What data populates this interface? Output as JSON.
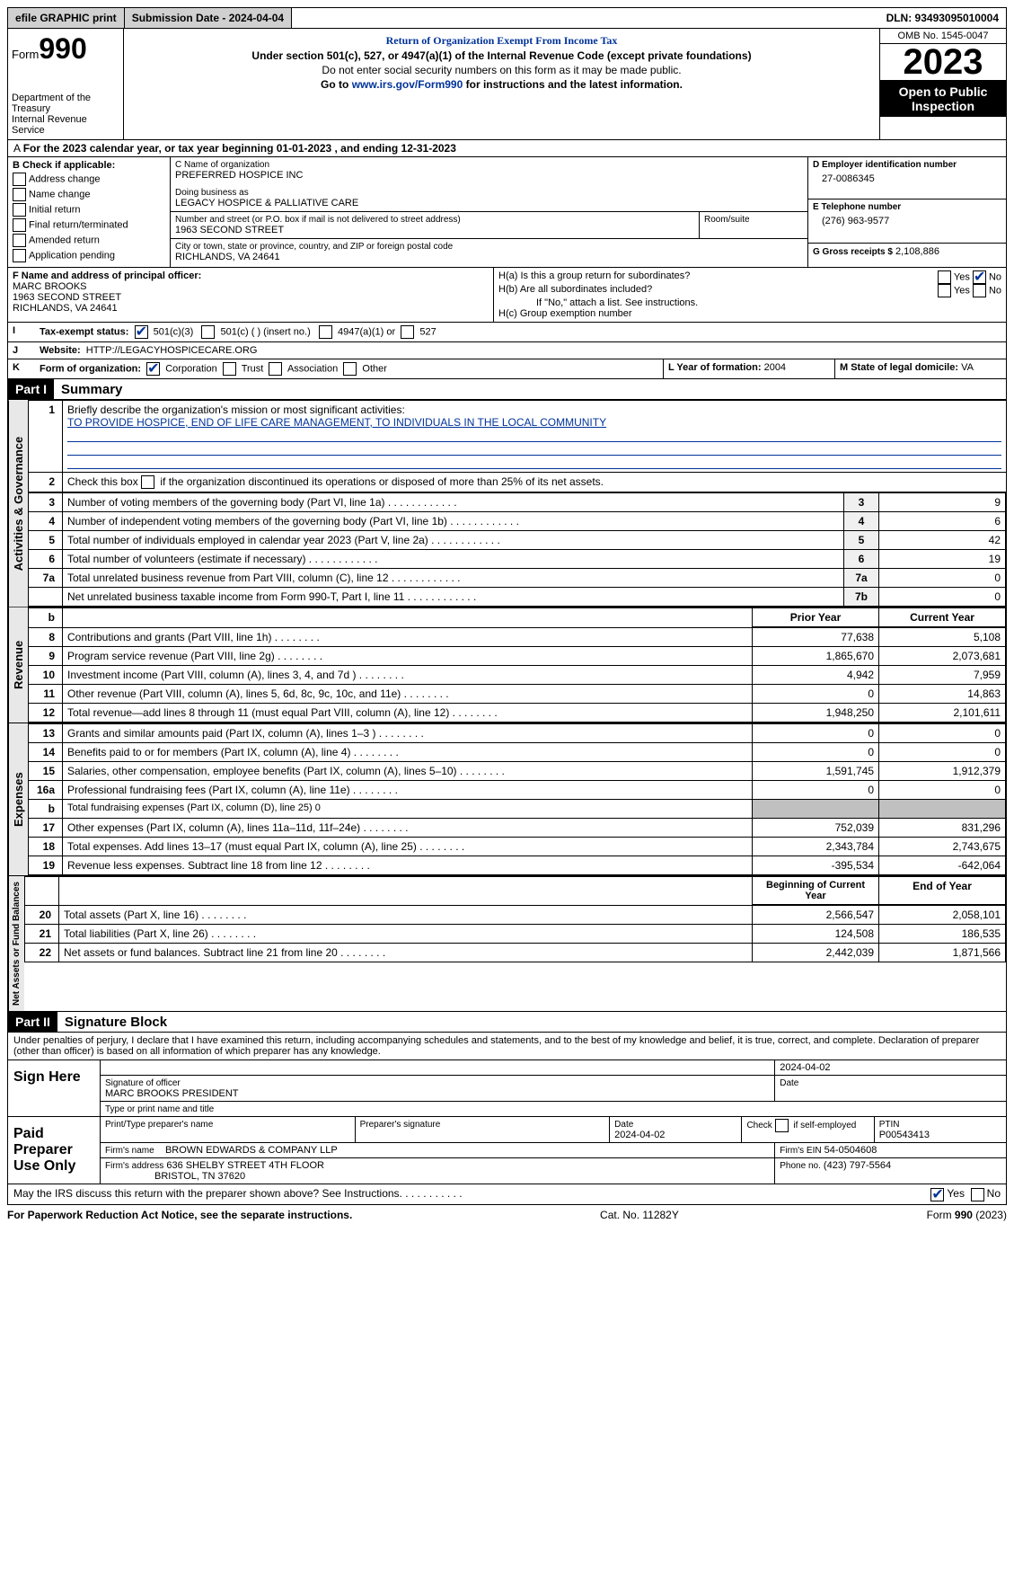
{
  "top": {
    "efile": "efile GRAPHIC print",
    "submission": "Submission Date - 2024-04-04",
    "dln": "DLN: 93493095010004"
  },
  "header": {
    "form_word": "Form",
    "form_no": "990",
    "dept": "Department of the Treasury",
    "irs": "Internal Revenue Service",
    "title": "Return of Organization Exempt From Income Tax",
    "sub1": "Under section 501(c), 527, or 4947(a)(1) of the Internal Revenue Code (except private foundations)",
    "sub2": "Do not enter social security numbers on this form as it may be made public.",
    "sub3_pre": "Go to ",
    "sub3_link": "www.irs.gov/Form990",
    "sub3_post": " for instructions and the latest information.",
    "omb": "OMB No. 1545-0047",
    "year": "2023",
    "open": "Open to Public Inspection"
  },
  "sectionA": "For the 2023 calendar year, or tax year beginning 01-01-2023   , and ending 12-31-2023",
  "boxB": {
    "title": "B Check if applicable:",
    "items": [
      "Address change",
      "Name change",
      "Initial return",
      "Final return/terminated",
      "Amended return",
      "Application pending"
    ]
  },
  "boxC": {
    "name_label": "C Name of organization",
    "name": "PREFERRED HOSPICE INC",
    "dba_label": "Doing business as",
    "dba": "LEGACY HOSPICE & PALLIATIVE CARE",
    "street_label": "Number and street (or P.O. box if mail is not delivered to street address)",
    "street": "1963 SECOND STREET",
    "room_label": "Room/suite",
    "city_label": "City or town, state or province, country, and ZIP or foreign postal code",
    "city": "RICHLANDS, VA  24641"
  },
  "boxD": {
    "label": "D Employer identification number",
    "val": "27-0086345"
  },
  "boxE": {
    "label": "E Telephone number",
    "val": "(276) 963-9577"
  },
  "boxG": {
    "label": "G Gross receipts $",
    "val": "2,108,886"
  },
  "boxF": {
    "label": "F  Name and address of principal officer:",
    "name": "MARC BROOKS",
    "street": "1963 SECOND STREET",
    "city": "RICHLANDS, VA  24641"
  },
  "boxH": {
    "a": "H(a)  Is this a group return for subordinates?",
    "b": "H(b)  Are all subordinates included?",
    "note": "If \"No,\" attach a list. See instructions.",
    "c": "H(c)  Group exemption number"
  },
  "boxI": {
    "label": "Tax-exempt status:",
    "c3": "501(c)(3)",
    "c": "501(c) (  ) (insert no.)",
    "a": "4947(a)(1) or",
    "d": "527"
  },
  "boxJ": {
    "label": "Website:",
    "val": "HTTP://LEGACYHOSPICECARE.ORG"
  },
  "boxK": {
    "label": "Form of organization:",
    "opts": [
      "Corporation",
      "Trust",
      "Association",
      "Other"
    ]
  },
  "boxL": {
    "label": "L Year of formation:",
    "val": "2004"
  },
  "boxM": {
    "label": "M State of legal domicile:",
    "val": "VA"
  },
  "part1": {
    "label": "Part I",
    "title": "Summary"
  },
  "gov": {
    "vtab": "Activities & Governance",
    "l1": "Briefly describe the organization's mission or most significant activities:",
    "l1v": "TO PROVIDE HOSPICE, END OF LIFE CARE MANAGEMENT, TO INDIVIDUALS IN THE LOCAL COMMUNITY",
    "l2": "Check this box        if the organization discontinued its operations or disposed of more than 25% of its net assets.",
    "rows": [
      {
        "n": "3",
        "t": "Number of voting members of the governing body (Part VI, line 1a)",
        "i": "3",
        "v": "9"
      },
      {
        "n": "4",
        "t": "Number of independent voting members of the governing body (Part VI, line 1b)",
        "i": "4",
        "v": "6"
      },
      {
        "n": "5",
        "t": "Total number of individuals employed in calendar year 2023 (Part V, line 2a)",
        "i": "5",
        "v": "42"
      },
      {
        "n": "6",
        "t": "Total number of volunteers (estimate if necessary)",
        "i": "6",
        "v": "19"
      },
      {
        "n": "7a",
        "t": "Total unrelated business revenue from Part VIII, column (C), line 12",
        "i": "7a",
        "v": "0"
      },
      {
        "n": "",
        "t": "Net unrelated business taxable income from Form 990-T, Part I, line 11",
        "i": "7b",
        "v": "0"
      }
    ]
  },
  "rev": {
    "vtab": "Revenue",
    "hdr": {
      "b": "b",
      "py": "Prior Year",
      "cy": "Current Year"
    },
    "rows": [
      {
        "n": "8",
        "t": "Contributions and grants (Part VIII, line 1h)",
        "py": "77,638",
        "cy": "5,108"
      },
      {
        "n": "9",
        "t": "Program service revenue (Part VIII, line 2g)",
        "py": "1,865,670",
        "cy": "2,073,681"
      },
      {
        "n": "10",
        "t": "Investment income (Part VIII, column (A), lines 3, 4, and 7d )",
        "py": "4,942",
        "cy": "7,959"
      },
      {
        "n": "11",
        "t": "Other revenue (Part VIII, column (A), lines 5, 6d, 8c, 9c, 10c, and 11e)",
        "py": "0",
        "cy": "14,863"
      },
      {
        "n": "12",
        "t": "Total revenue—add lines 8 through 11 (must equal Part VIII, column (A), line 12)",
        "py": "1,948,250",
        "cy": "2,101,611"
      }
    ]
  },
  "exp": {
    "vtab": "Expenses",
    "rows": [
      {
        "n": "13",
        "t": "Grants and similar amounts paid (Part IX, column (A), lines 1–3 )",
        "py": "0",
        "cy": "0"
      },
      {
        "n": "14",
        "t": "Benefits paid to or for members (Part IX, column (A), line 4)",
        "py": "0",
        "cy": "0"
      },
      {
        "n": "15",
        "t": "Salaries, other compensation, employee benefits (Part IX, column (A), lines 5–10)",
        "py": "1,591,745",
        "cy": "1,912,379"
      },
      {
        "n": "16a",
        "t": "Professional fundraising fees (Part IX, column (A), line 11e)",
        "py": "0",
        "cy": "0"
      },
      {
        "n": "b",
        "t": "Total fundraising expenses (Part IX, column (D), line 25) 0",
        "py": "",
        "cy": "",
        "gray": true,
        "small": true
      },
      {
        "n": "17",
        "t": "Other expenses (Part IX, column (A), lines 11a–11d, 11f–24e)",
        "py": "752,039",
        "cy": "831,296"
      },
      {
        "n": "18",
        "t": "Total expenses. Add lines 13–17 (must equal Part IX, column (A), line 25)",
        "py": "2,343,784",
        "cy": "2,743,675"
      },
      {
        "n": "19",
        "t": "Revenue less expenses. Subtract line 18 from line 12",
        "py": "-395,534",
        "cy": "-642,064"
      }
    ]
  },
  "net": {
    "vtab": "Net Assets or Fund Balances",
    "hdr": {
      "py": "Beginning of Current Year",
      "cy": "End of Year"
    },
    "rows": [
      {
        "n": "20",
        "t": "Total assets (Part X, line 16)",
        "py": "2,566,547",
        "cy": "2,058,101"
      },
      {
        "n": "21",
        "t": "Total liabilities (Part X, line 26)",
        "py": "124,508",
        "cy": "186,535"
      },
      {
        "n": "22",
        "t": "Net assets or fund balances. Subtract line 21 from line 20",
        "py": "2,442,039",
        "cy": "1,871,566"
      }
    ]
  },
  "part2": {
    "label": "Part II",
    "title": "Signature Block"
  },
  "perjury": "Under penalties of perjury, I declare that I have examined this return, including accompanying schedules and statements, and to the best of my knowledge and belief, it is true, correct, and complete. Declaration of preparer (other than officer) is based on all information of which preparer has any knowledge.",
  "sign": {
    "label": "Sign Here",
    "date": "2024-04-02",
    "sigoff": "Signature of officer",
    "name": "MARC BROOKS  PRESIDENT",
    "typelabel": "Type or print name and title",
    "datelabel": "Date"
  },
  "paid": {
    "label": "Paid Preparer Use Only",
    "h": {
      "a": "Print/Type preparer's name",
      "b": "Preparer's signature",
      "c": "Date",
      "d": "Check         if self-employed",
      "e": "PTIN"
    },
    "date": "2024-04-02",
    "ptin": "P00543413",
    "firm": "Firm's name",
    "firmval": "BROWN EDWARDS & COMPANY LLP",
    "ein": "Firm's EIN",
    "einval": "54-0504608",
    "addr": "Firm's address",
    "addrval": "636 SHELBY STREET 4TH FLOOR",
    "addr2": "BRISTOL, TN  37620",
    "phone": "Phone no.",
    "phoneval": "(423) 797-5564"
  },
  "discuss": "May the IRS discuss this return with the preparer shown above? See Instructions.",
  "footer": {
    "a": "For Paperwork Reduction Act Notice, see the separate instructions.",
    "b": "Cat. No. 11282Y",
    "c": "Form 990 (2023)"
  }
}
